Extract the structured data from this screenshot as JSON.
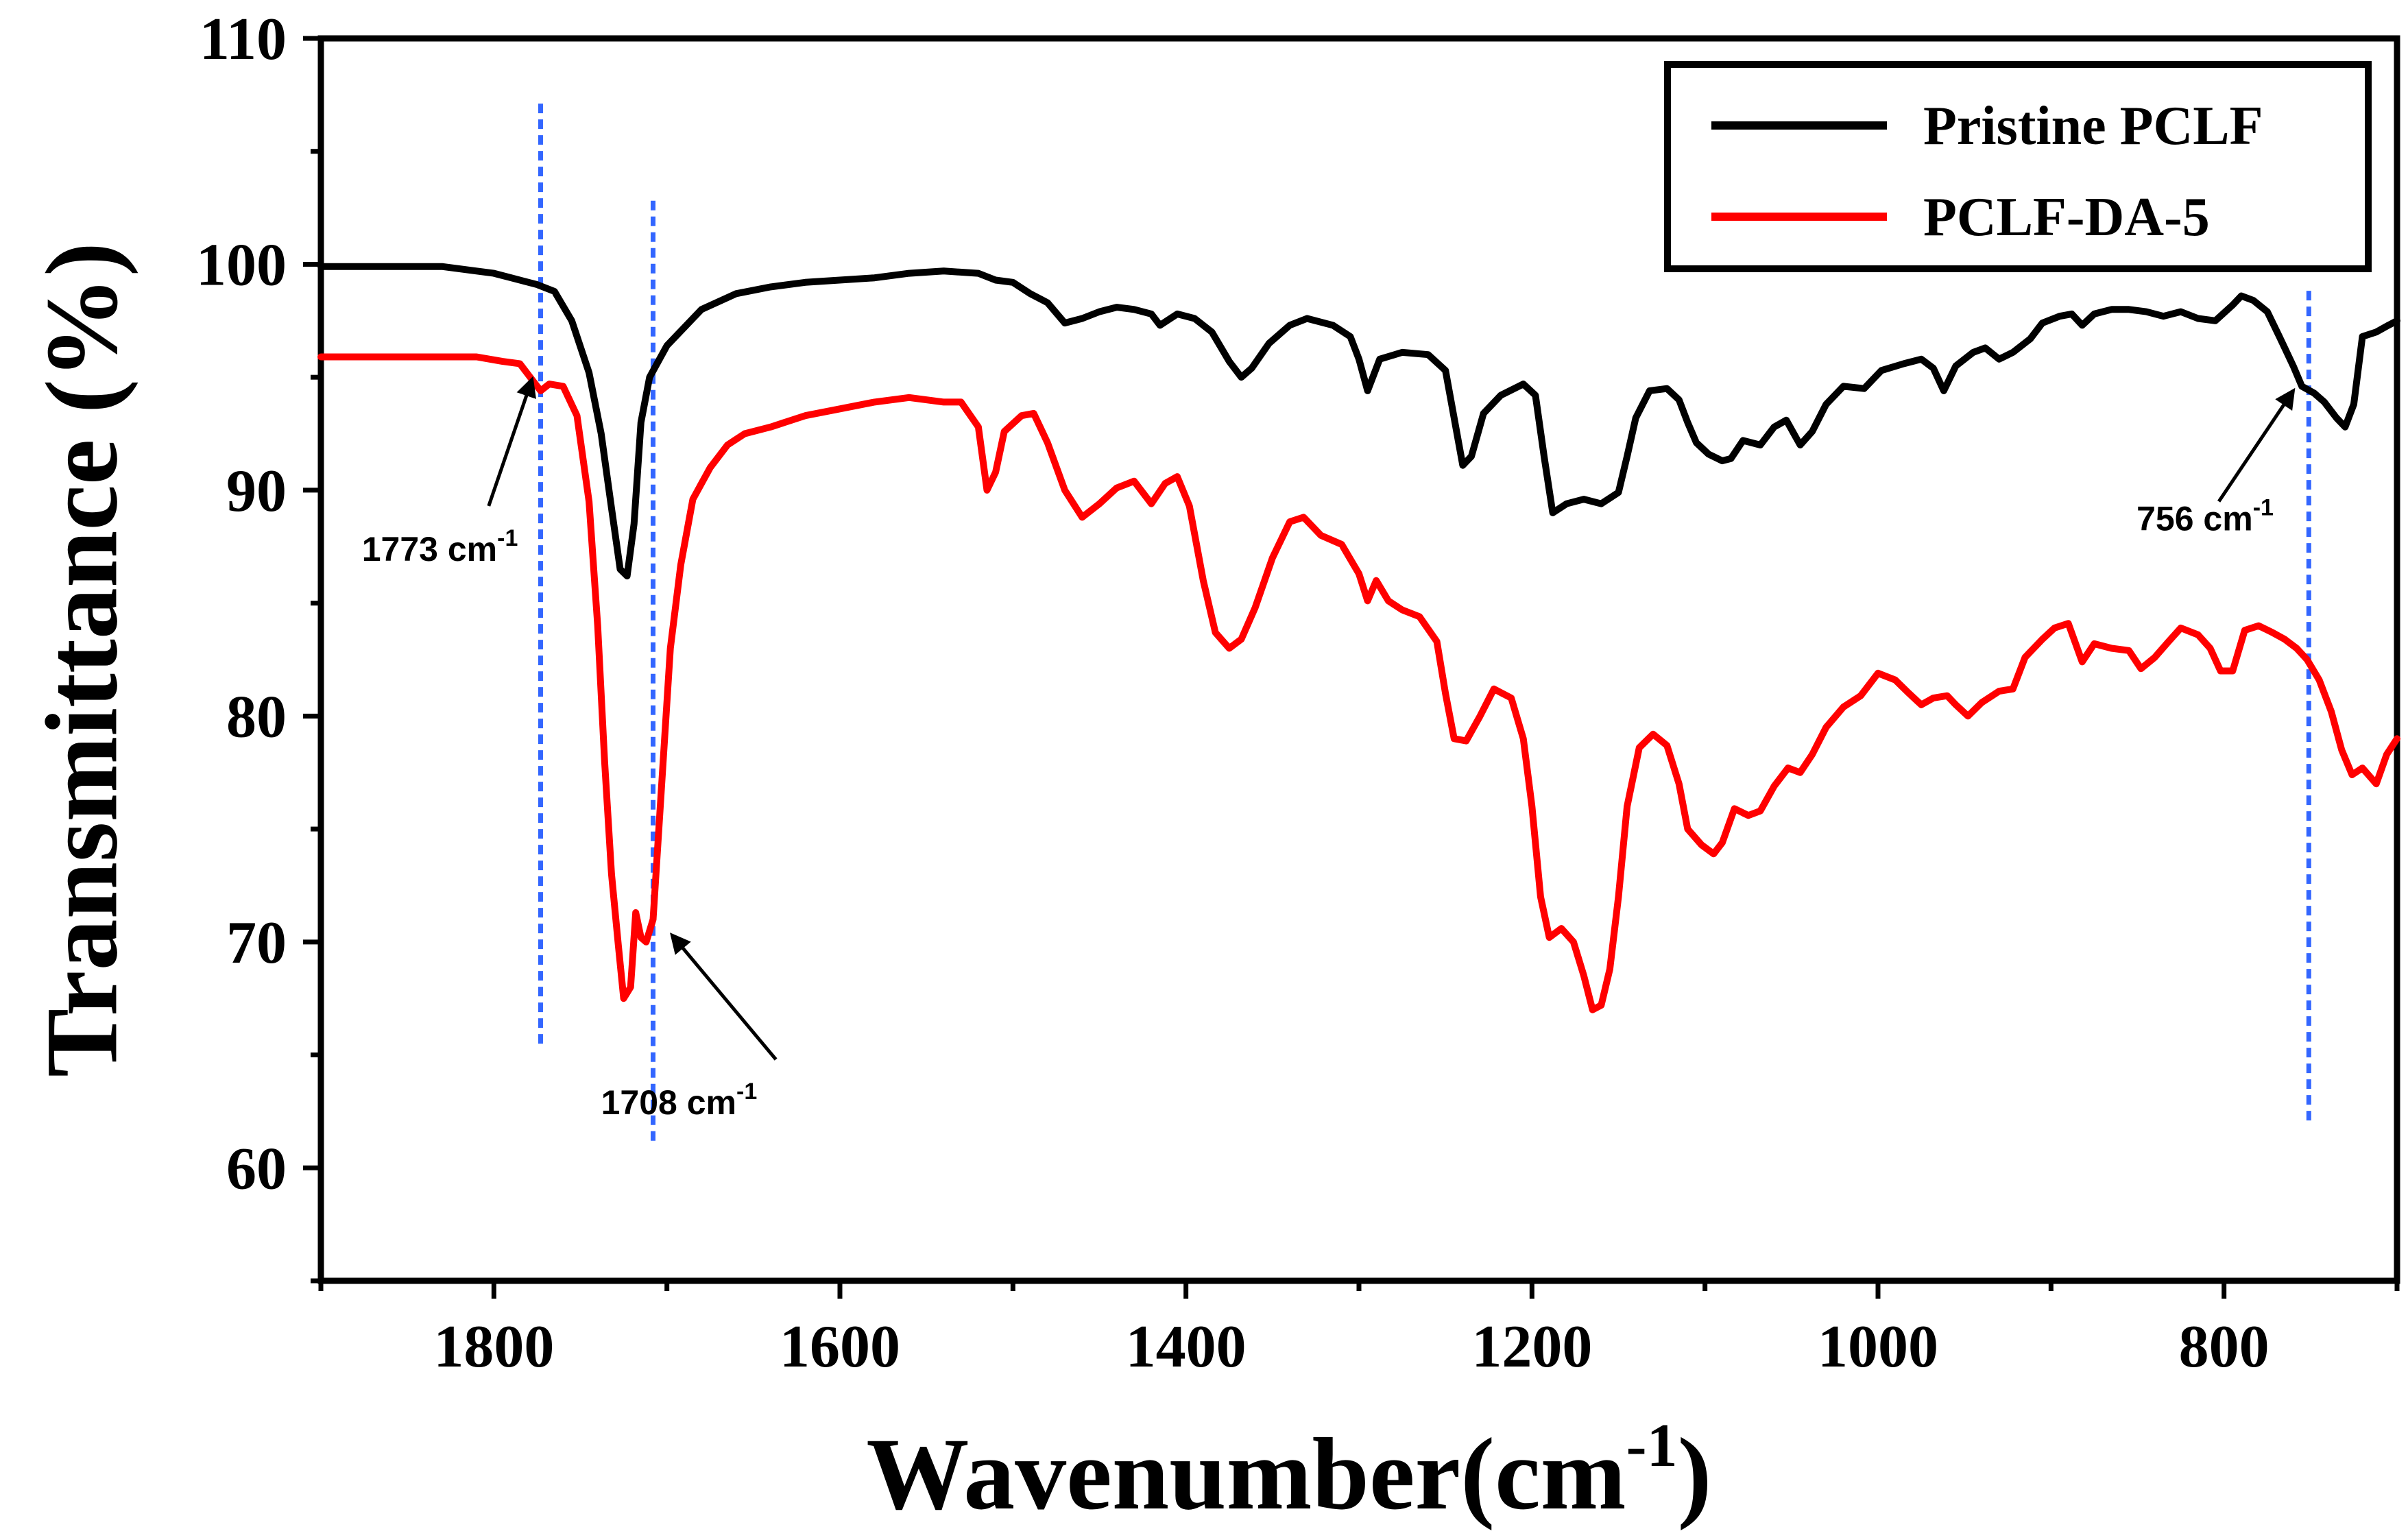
{
  "chart_data": {
    "type": "line",
    "title": "",
    "xlabel": "Wavenumber(cm",
    "xlabel_sup": "-1",
    "xlabel_close": ")",
    "ylabel": "Transmittance (%)",
    "xlim": [
      1900,
      700
    ],
    "ylim": [
      55,
      110
    ],
    "x_reversed": true,
    "xticks": [
      1800,
      1600,
      1400,
      1200,
      1000,
      800
    ],
    "yticks": [
      60,
      70,
      80,
      90,
      100,
      110
    ],
    "legend_position": "top-right",
    "series": [
      {
        "name": "Pristine PCLF",
        "color": "#000000",
        "points": [
          [
            1900,
            99.9
          ],
          [
            1830,
            99.9
          ],
          [
            1810,
            99.7
          ],
          [
            1800,
            99.6
          ],
          [
            1790,
            99.4
          ],
          [
            1775,
            99.1
          ],
          [
            1765,
            98.8
          ],
          [
            1755,
            97.5
          ],
          [
            1745,
            95.2
          ],
          [
            1738,
            92.5
          ],
          [
            1732,
            89.2
          ],
          [
            1727,
            86.5
          ],
          [
            1723,
            86.2
          ],
          [
            1719,
            88.5
          ],
          [
            1715,
            93.0
          ],
          [
            1710,
            95.0
          ],
          [
            1700,
            96.4
          ],
          [
            1690,
            97.2
          ],
          [
            1680,
            98.0
          ],
          [
            1660,
            98.7
          ],
          [
            1640,
            99.0
          ],
          [
            1620,
            99.2
          ],
          [
            1580,
            99.4
          ],
          [
            1560,
            99.6
          ],
          [
            1540,
            99.7
          ],
          [
            1520,
            99.6
          ],
          [
            1510,
            99.3
          ],
          [
            1500,
            99.2
          ],
          [
            1490,
            98.7
          ],
          [
            1480,
            98.3
          ],
          [
            1470,
            97.4
          ],
          [
            1460,
            97.6
          ],
          [
            1450,
            97.9
          ],
          [
            1440,
            98.1
          ],
          [
            1430,
            98.0
          ],
          [
            1420,
            97.8
          ],
          [
            1415,
            97.3
          ],
          [
            1405,
            97.8
          ],
          [
            1395,
            97.6
          ],
          [
            1385,
            97.0
          ],
          [
            1375,
            95.7
          ],
          [
            1368,
            95.0
          ],
          [
            1362,
            95.4
          ],
          [
            1352,
            96.5
          ],
          [
            1340,
            97.3
          ],
          [
            1330,
            97.6
          ],
          [
            1315,
            97.3
          ],
          [
            1305,
            96.8
          ],
          [
            1300,
            95.8
          ],
          [
            1295,
            94.4
          ],
          [
            1288,
            95.8
          ],
          [
            1275,
            96.1
          ],
          [
            1260,
            96.0
          ],
          [
            1250,
            95.3
          ],
          [
            1245,
            93.2
          ],
          [
            1240,
            91.1
          ],
          [
            1235,
            91.5
          ],
          [
            1228,
            93.4
          ],
          [
            1218,
            94.2
          ],
          [
            1205,
            94.7
          ],
          [
            1198,
            94.2
          ],
          [
            1193,
            91.5
          ],
          [
            1188,
            89.0
          ],
          [
            1180,
            89.4
          ],
          [
            1170,
            89.6
          ],
          [
            1160,
            89.4
          ],
          [
            1150,
            89.9
          ],
          [
            1145,
            91.5
          ],
          [
            1140,
            93.2
          ],
          [
            1132,
            94.4
          ],
          [
            1122,
            94.5
          ],
          [
            1115,
            94.0
          ],
          [
            1110,
            93.0
          ],
          [
            1105,
            92.1
          ],
          [
            1098,
            91.6
          ],
          [
            1090,
            91.3
          ],
          [
            1085,
            91.4
          ],
          [
            1078,
            92.2
          ],
          [
            1068,
            92.0
          ],
          [
            1060,
            92.8
          ],
          [
            1053,
            93.1
          ],
          [
            1045,
            92.0
          ],
          [
            1038,
            92.6
          ],
          [
            1030,
            93.8
          ],
          [
            1020,
            94.6
          ],
          [
            1008,
            94.5
          ],
          [
            998,
            95.3
          ],
          [
            985,
            95.6
          ],
          [
            975,
            95.8
          ],
          [
            968,
            95.4
          ],
          [
            962,
            94.4
          ],
          [
            955,
            95.5
          ],
          [
            945,
            96.1
          ],
          [
            938,
            96.3
          ],
          [
            930,
            95.8
          ],
          [
            922,
            96.1
          ],
          [
            912,
            96.7
          ],
          [
            905,
            97.4
          ],
          [
            895,
            97.7
          ],
          [
            888,
            97.8
          ],
          [
            882,
            97.3
          ],
          [
            875,
            97.8
          ],
          [
            865,
            98.0
          ],
          [
            855,
            98.0
          ],
          [
            845,
            97.9
          ],
          [
            835,
            97.7
          ],
          [
            825,
            97.9
          ],
          [
            815,
            97.6
          ],
          [
            805,
            97.5
          ],
          [
            795,
            98.2
          ],
          [
            790,
            98.6
          ],
          [
            783,
            98.4
          ],
          [
            775,
            97.9
          ],
          [
            768,
            96.8
          ],
          [
            760,
            95.5
          ],
          [
            755,
            94.6
          ],
          [
            748,
            94.3
          ],
          [
            742,
            93.9
          ],
          [
            735,
            93.2
          ],
          [
            730,
            92.8
          ],
          [
            725,
            93.8
          ],
          [
            720,
            96.8
          ],
          [
            712,
            97.0
          ],
          [
            705,
            97.3
          ],
          [
            700,
            97.5
          ]
        ]
      },
      {
        "name": "PCLF-DA-5",
        "color": "#ff0000",
        "points": [
          [
            1900,
            95.9
          ],
          [
            1840,
            95.9
          ],
          [
            1810,
            95.9
          ],
          [
            1795,
            95.7
          ],
          [
            1785,
            95.6
          ],
          [
            1778,
            94.9
          ],
          [
            1773,
            94.4
          ],
          [
            1768,
            94.7
          ],
          [
            1760,
            94.6
          ],
          [
            1752,
            93.3
          ],
          [
            1745,
            89.5
          ],
          [
            1740,
            84.0
          ],
          [
            1736,
            78.0
          ],
          [
            1732,
            73.0
          ],
          [
            1728,
            69.8
          ],
          [
            1725,
            67.5
          ],
          [
            1721,
            68.0
          ],
          [
            1718,
            71.3
          ],
          [
            1715,
            70.2
          ],
          [
            1712,
            70.0
          ],
          [
            1708,
            71.0
          ],
          [
            1703,
            77.0
          ],
          [
            1698,
            83.0
          ],
          [
            1692,
            86.7
          ],
          [
            1685,
            89.6
          ],
          [
            1675,
            91.0
          ],
          [
            1665,
            92.0
          ],
          [
            1655,
            92.5
          ],
          [
            1640,
            92.8
          ],
          [
            1620,
            93.3
          ],
          [
            1600,
            93.6
          ],
          [
            1580,
            93.9
          ],
          [
            1560,
            94.1
          ],
          [
            1540,
            93.9
          ],
          [
            1530,
            93.9
          ],
          [
            1520,
            92.8
          ],
          [
            1515,
            90.0
          ],
          [
            1510,
            90.8
          ],
          [
            1505,
            92.6
          ],
          [
            1495,
            93.3
          ],
          [
            1488,
            93.4
          ],
          [
            1480,
            92.1
          ],
          [
            1470,
            90.0
          ],
          [
            1460,
            88.8
          ],
          [
            1450,
            89.4
          ],
          [
            1440,
            90.1
          ],
          [
            1430,
            90.4
          ],
          [
            1420,
            89.4
          ],
          [
            1412,
            90.3
          ],
          [
            1405,
            90.6
          ],
          [
            1398,
            89.3
          ],
          [
            1390,
            86.0
          ],
          [
            1383,
            83.7
          ],
          [
            1375,
            83.0
          ],
          [
            1368,
            83.4
          ],
          [
            1360,
            84.8
          ],
          [
            1350,
            87.0
          ],
          [
            1340,
            88.6
          ],
          [
            1332,
            88.8
          ],
          [
            1322,
            88.0
          ],
          [
            1310,
            87.6
          ],
          [
            1300,
            86.3
          ],
          [
            1295,
            85.1
          ],
          [
            1290,
            86.0
          ],
          [
            1283,
            85.1
          ],
          [
            1275,
            84.7
          ],
          [
            1265,
            84.4
          ],
          [
            1255,
            83.3
          ],
          [
            1250,
            81.0
          ],
          [
            1245,
            79.0
          ],
          [
            1238,
            78.9
          ],
          [
            1230,
            80.0
          ],
          [
            1222,
            81.2
          ],
          [
            1212,
            80.8
          ],
          [
            1205,
            79.0
          ],
          [
            1200,
            76.0
          ],
          [
            1195,
            72.0
          ],
          [
            1190,
            70.2
          ],
          [
            1183,
            70.6
          ],
          [
            1176,
            70.0
          ],
          [
            1170,
            68.5
          ],
          [
            1165,
            67.0
          ],
          [
            1160,
            67.2
          ],
          [
            1155,
            68.8
          ],
          [
            1150,
            72.0
          ],
          [
            1145,
            76.0
          ],
          [
            1138,
            78.6
          ],
          [
            1130,
            79.2
          ],
          [
            1122,
            78.7
          ],
          [
            1115,
            77.0
          ],
          [
            1110,
            75.0
          ],
          [
            1102,
            74.3
          ],
          [
            1095,
            73.9
          ],
          [
            1090,
            74.4
          ],
          [
            1083,
            75.9
          ],
          [
            1075,
            75.6
          ],
          [
            1068,
            75.8
          ],
          [
            1060,
            76.9
          ],
          [
            1052,
            77.7
          ],
          [
            1045,
            77.5
          ],
          [
            1038,
            78.3
          ],
          [
            1030,
            79.5
          ],
          [
            1020,
            80.4
          ],
          [
            1010,
            80.9
          ],
          [
            1000,
            81.9
          ],
          [
            990,
            81.6
          ],
          [
            982,
            81.0
          ],
          [
            975,
            80.5
          ],
          [
            968,
            80.8
          ],
          [
            960,
            80.9
          ],
          [
            955,
            80.5
          ],
          [
            948,
            80.0
          ],
          [
            940,
            80.6
          ],
          [
            930,
            81.1
          ],
          [
            922,
            81.2
          ],
          [
            915,
            82.6
          ],
          [
            905,
            83.4
          ],
          [
            898,
            83.9
          ],
          [
            890,
            84.1
          ],
          [
            882,
            82.4
          ],
          [
            875,
            83.2
          ],
          [
            865,
            83.0
          ],
          [
            855,
            82.9
          ],
          [
            848,
            82.1
          ],
          [
            840,
            82.6
          ],
          [
            832,
            83.3
          ],
          [
            825,
            83.9
          ],
          [
            815,
            83.6
          ],
          [
            808,
            83.0
          ],
          [
            802,
            82.0
          ],
          [
            795,
            82.0
          ],
          [
            788,
            83.8
          ],
          [
            780,
            84.0
          ],
          [
            772,
            83.7
          ],
          [
            765,
            83.4
          ],
          [
            758,
            83.0
          ],
          [
            752,
            82.5
          ],
          [
            745,
            81.6
          ],
          [
            738,
            80.2
          ],
          [
            732,
            78.5
          ],
          [
            726,
            77.4
          ],
          [
            720,
            77.7
          ],
          [
            712,
            77.0
          ],
          [
            706,
            78.3
          ],
          [
            700,
            79.0
          ]
        ]
      }
    ],
    "reference_lines": [
      {
        "x": 1773,
        "y_from": 65.5,
        "y_to": 107.2
      },
      {
        "x": 1708,
        "y_from": 61.2,
        "y_to": 102.9
      },
      {
        "x": 751,
        "y_from": 62.1,
        "y_to": 99.0
      }
    ],
    "annotations": [
      {
        "text": "1773 cm",
        "sup": "-1",
        "arrow_from": [
          1803,
          89.3
        ],
        "arrow_to": [
          1778,
          94.9
        ]
      },
      {
        "text": "1708 cm",
        "sup": "-1",
        "arrow_from": [
          1637,
          64.8
        ],
        "arrow_to": [
          1697,
          70.3
        ]
      },
      {
        "text": "756 cm",
        "sup": "-1",
        "arrow_from": [
          803,
          89.5
        ],
        "arrow_to": [
          760,
          94.4
        ]
      }
    ],
    "reference_line_color": "#3366ff"
  }
}
